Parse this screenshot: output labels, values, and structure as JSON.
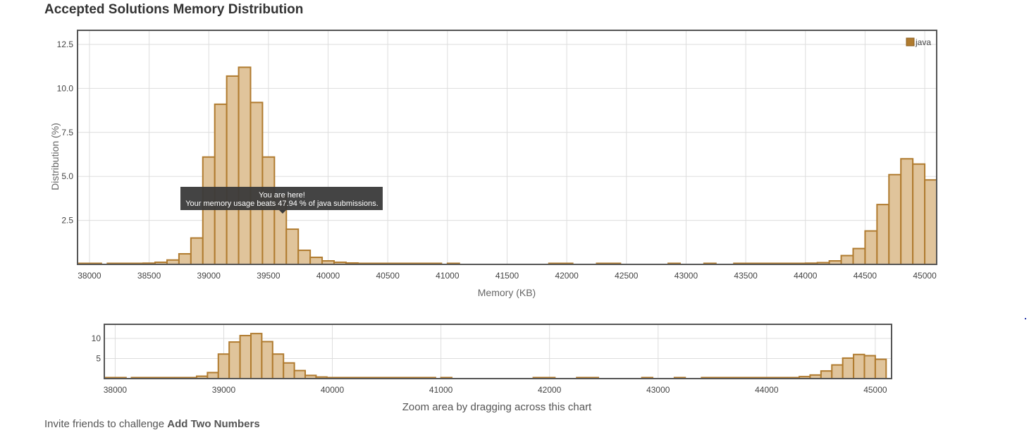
{
  "page": {
    "title": "Accepted Solutions Memory Distribution",
    "invite_prefix": "Invite friends to challenge ",
    "invite_problem": "Add Two Numbers"
  },
  "tooltip": {
    "line1": "You are here!",
    "line2": "Your memory usage beats 47.94 % of java submissions."
  },
  "colors": {
    "bar_fill": "#e0c49b",
    "bar_stroke": "#b07b2f"
  },
  "chart_data": [
    {
      "type": "bar",
      "role": "main",
      "xlabel": "Memory (KB)",
      "ylabel": "Distribution (%)",
      "legend": {
        "labels": [
          "java"
        ],
        "placement": "top-right"
      },
      "series_name": "java",
      "xlim": [
        37900,
        45100
      ],
      "ylim": [
        0,
        13.3
      ],
      "xticks": [
        38000,
        38500,
        39000,
        39500,
        40000,
        40500,
        41000,
        41500,
        42000,
        42500,
        43000,
        43500,
        44000,
        44500,
        45000
      ],
      "yticks": [
        2.5,
        5.0,
        7.5,
        10.0,
        12.5
      ],
      "ytick_labels": [
        "2.5",
        "5.0",
        "7.5",
        "10.0",
        "12.5"
      ],
      "grid": true,
      "highlight_x": 39600,
      "bin_width": 100,
      "bins": [
        [
          37900,
          0.05
        ],
        [
          38000,
          0.05
        ],
        [
          38150,
          0.05
        ],
        [
          38250,
          0.05
        ],
        [
          38350,
          0.05
        ],
        [
          38450,
          0.07
        ],
        [
          38550,
          0.12
        ],
        [
          38650,
          0.25
        ],
        [
          38750,
          0.6
        ],
        [
          38850,
          1.5
        ],
        [
          38950,
          6.1
        ],
        [
          39050,
          9.1
        ],
        [
          39150,
          10.7
        ],
        [
          39250,
          11.2
        ],
        [
          39350,
          9.2
        ],
        [
          39450,
          6.1
        ],
        [
          39550,
          3.9
        ],
        [
          39650,
          2.0
        ],
        [
          39750,
          0.8
        ],
        [
          39850,
          0.4
        ],
        [
          39950,
          0.2
        ],
        [
          40050,
          0.12
        ],
        [
          40150,
          0.08
        ],
        [
          40250,
          0.05
        ],
        [
          40350,
          0.04
        ],
        [
          40450,
          0.03
        ],
        [
          40550,
          0.03
        ],
        [
          40650,
          0.03
        ],
        [
          40750,
          0.03
        ],
        [
          40850,
          0.03
        ],
        [
          41000,
          0.03
        ],
        [
          41850,
          0.03
        ],
        [
          41950,
          0.03
        ],
        [
          42250,
          0.03
        ],
        [
          42350,
          0.03
        ],
        [
          42850,
          0.03
        ],
        [
          43150,
          0.03
        ],
        [
          43400,
          0.03
        ],
        [
          43500,
          0.03
        ],
        [
          43600,
          0.03
        ],
        [
          43700,
          0.04
        ],
        [
          43800,
          0.04
        ],
        [
          43900,
          0.05
        ],
        [
          44000,
          0.07
        ],
        [
          44100,
          0.1
        ],
        [
          44200,
          0.2
        ],
        [
          44300,
          0.5
        ],
        [
          44400,
          0.9
        ],
        [
          44500,
          1.9
        ],
        [
          44600,
          3.4
        ],
        [
          44700,
          5.1
        ],
        [
          44800,
          6.0
        ],
        [
          44900,
          5.7
        ],
        [
          45000,
          4.8
        ]
      ]
    },
    {
      "type": "bar",
      "role": "navigator",
      "xlabel": "Zoom area by dragging across this chart",
      "xlim": [
        37900,
        45150
      ],
      "ylim": [
        0,
        13.5
      ],
      "xticks": [
        38000,
        39000,
        40000,
        41000,
        42000,
        43000,
        44000,
        45000
      ],
      "yticks": [
        5,
        10
      ],
      "ytick_labels": [
        "5",
        "10"
      ],
      "grid": true
    }
  ]
}
